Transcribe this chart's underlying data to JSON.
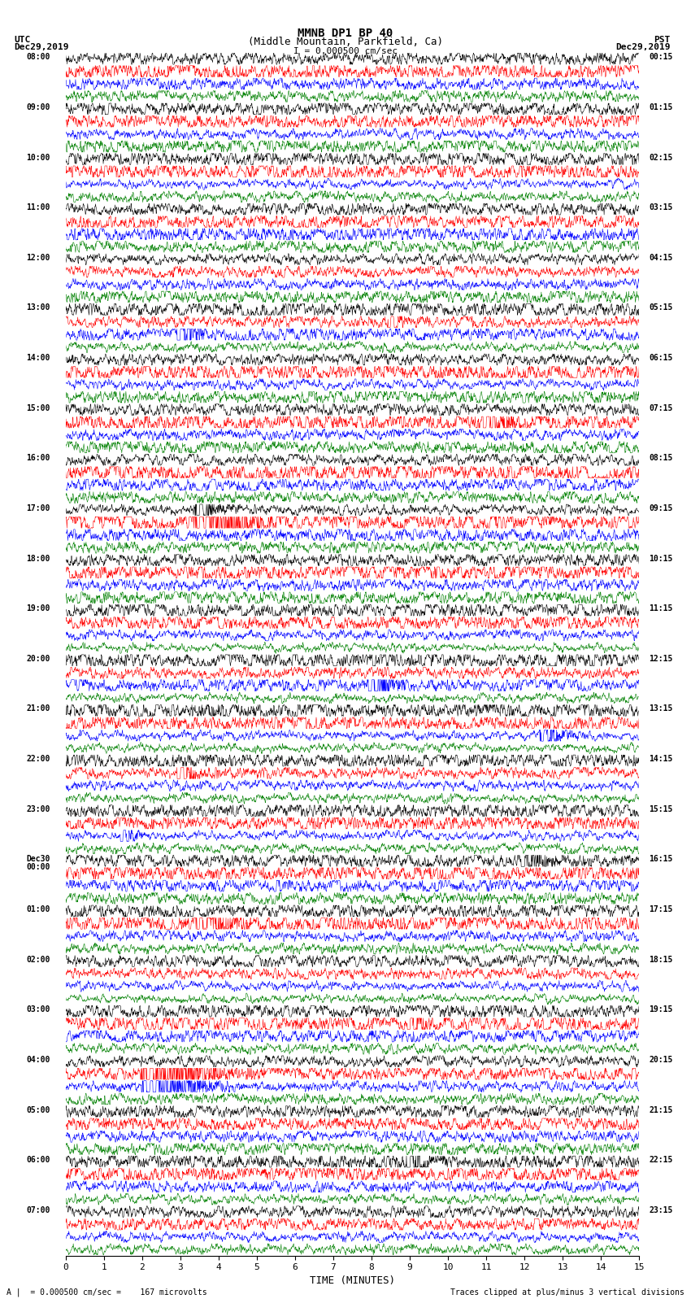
{
  "title_line1": "MMNB DP1 BP 40",
  "title_line2": "(Middle Mountain, Parkfield, Ca)",
  "scale_label": "I = 0.000500 cm/sec",
  "xlabel": "TIME (MINUTES)",
  "footer_left": "A |  = 0.000500 cm/sec =    167 microvolts",
  "footer_right": "Traces clipped at plus/minus 3 vertical divisions",
  "utc_times": [
    "08:00",
    "09:00",
    "10:00",
    "11:00",
    "12:00",
    "13:00",
    "14:00",
    "15:00",
    "16:00",
    "17:00",
    "18:00",
    "19:00",
    "20:00",
    "21:00",
    "22:00",
    "23:00",
    "Dec30\n00:00",
    "01:00",
    "02:00",
    "03:00",
    "04:00",
    "05:00",
    "06:00",
    "07:00"
  ],
  "pst_times": [
    "00:15",
    "01:15",
    "02:15",
    "03:15",
    "04:15",
    "05:15",
    "06:15",
    "07:15",
    "08:15",
    "09:15",
    "10:15",
    "11:15",
    "12:15",
    "13:15",
    "14:15",
    "15:15",
    "16:15",
    "17:15",
    "18:15",
    "19:15",
    "20:15",
    "21:15",
    "22:15",
    "23:15"
  ],
  "trace_colors": [
    "black",
    "red",
    "blue",
    "green"
  ],
  "n_rows": 24,
  "traces_per_row": 4,
  "x_min": 0,
  "x_max": 15,
  "x_ticks": [
    0,
    1,
    2,
    3,
    4,
    5,
    6,
    7,
    8,
    9,
    10,
    11,
    12,
    13,
    14,
    15
  ],
  "background_color": "white",
  "fig_width": 8.5,
  "fig_height": 16.13
}
